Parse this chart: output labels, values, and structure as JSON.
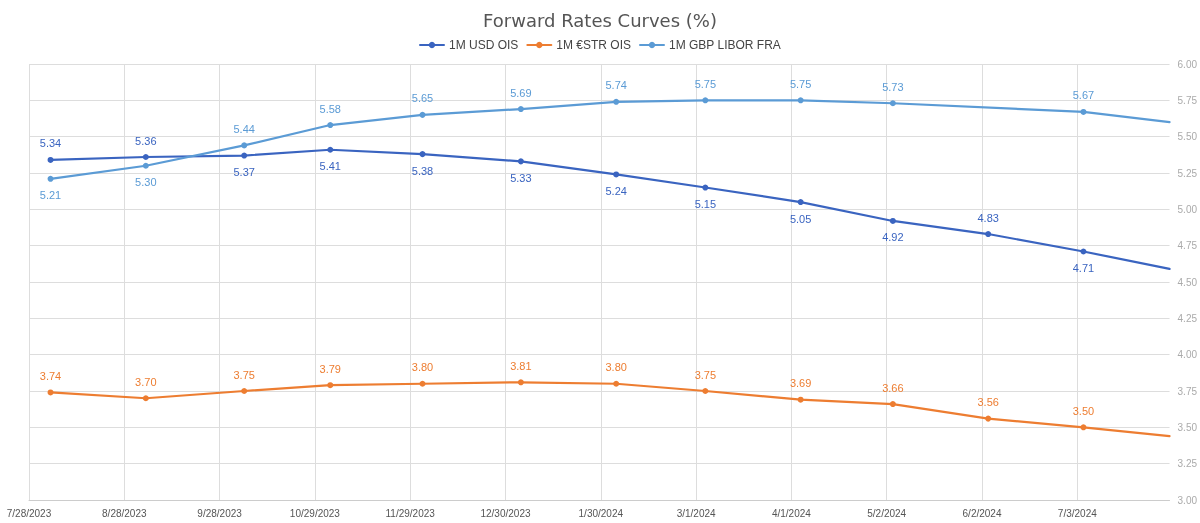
{
  "chart_data": {
    "type": "line",
    "title": "Forward Rates Curves (%)",
    "x": [
      "2023-08-04",
      "2023-09-04",
      "2023-10-06",
      "2023-11-03",
      "2023-12-03",
      "2024-01-04",
      "2024-02-04",
      "2024-03-04",
      "2024-04-04",
      "2024-05-04",
      "2024-06-04",
      "2024-07-05",
      "2024-08-02"
    ],
    "series": [
      {
        "name": "1M USD OIS",
        "color": "#3a64c0",
        "values": [
          5.34,
          5.36,
          5.37,
          5.41,
          5.38,
          5.33,
          5.24,
          5.15,
          5.05,
          4.92,
          4.83,
          4.71,
          4.59
        ],
        "value_labels": [
          "5.34",
          "5.36",
          "5.37",
          "5.41",
          "5.38",
          "5.33",
          "5.24",
          "5.15",
          "5.05",
          "4.92",
          "4.83",
          "4.71",
          null
        ]
      },
      {
        "name": "1M €STR OIS",
        "color": "#ed7d31",
        "values": [
          3.74,
          3.7,
          3.75,
          3.79,
          3.8,
          3.81,
          3.8,
          3.75,
          3.69,
          3.66,
          3.56,
          3.5,
          3.44
        ],
        "value_labels": [
          "3.74",
          "3.70",
          "3.75",
          "3.79",
          "3.80",
          "3.81",
          "3.80",
          "3.75",
          "3.69",
          "3.66",
          "3.56",
          "3.50",
          null
        ]
      },
      {
        "name": "1M GBP LIBOR FRA",
        "color": "#5b9bd5",
        "x": [
          "2023-08-04",
          "2023-09-04",
          "2023-10-06",
          "2023-11-03",
          "2023-12-03",
          "2024-01-04",
          "2024-02-04",
          "2024-03-04",
          "2024-04-04",
          "2024-05-04",
          "2024-07-05",
          "2024-08-02"
        ],
        "values": [
          5.21,
          5.3,
          5.44,
          5.58,
          5.65,
          5.69,
          5.74,
          5.75,
          5.75,
          5.73,
          5.67,
          5.6
        ],
        "value_labels": [
          "5.21",
          "5.30",
          "5.44",
          "5.58",
          "5.65",
          "5.69",
          "5.74",
          "5.75",
          "5.75",
          "5.73",
          "5.67",
          null
        ]
      }
    ],
    "xlim": [
      "2023-07-28",
      "2024-08-02"
    ],
    "xticks": [
      {
        "value": "2023-07-28",
        "label": "7/28/2023"
      },
      {
        "value": "2023-08-28",
        "label": "8/28/2023"
      },
      {
        "value": "2023-09-28",
        "label": "9/28/2023"
      },
      {
        "value": "2023-10-29",
        "label": "10/29/2023"
      },
      {
        "value": "2023-11-29",
        "label": "11/29/2023"
      },
      {
        "value": "2023-12-30",
        "label": "12/30/2023"
      },
      {
        "value": "2024-01-30",
        "label": "1/30/2024"
      },
      {
        "value": "2024-03-01",
        "label": "3/1/2024"
      },
      {
        "value": "2024-04-01",
        "label": "4/1/2024"
      },
      {
        "value": "2024-05-02",
        "label": "5/2/2024"
      },
      {
        "value": "2024-06-02",
        "label": "6/2/2024"
      },
      {
        "value": "2024-07-03",
        "label": "7/3/2024"
      }
    ],
    "ylim": [
      3,
      6
    ],
    "yticks": [
      {
        "value": 3,
        "label": "3.00"
      },
      {
        "value": 3.25,
        "label": "3.25"
      },
      {
        "value": 3.5,
        "label": "3.50"
      },
      {
        "value": 3.75,
        "label": "3.75"
      },
      {
        "value": 4,
        "label": "4.00"
      },
      {
        "value": 4.25,
        "label": "4.25"
      },
      {
        "value": 4.5,
        "label": "4.50"
      },
      {
        "value": 4.75,
        "label": "4.75"
      },
      {
        "value": 5,
        "label": "5.00"
      },
      {
        "value": 5.25,
        "label": "5.25"
      },
      {
        "value": 5.5,
        "label": "5.50"
      },
      {
        "value": 5.75,
        "label": "5.75"
      },
      {
        "value": 6,
        "label": "6.00"
      }
    ],
    "grid": true,
    "legend": "top",
    "marker": "circle",
    "line_style": "solid"
  }
}
